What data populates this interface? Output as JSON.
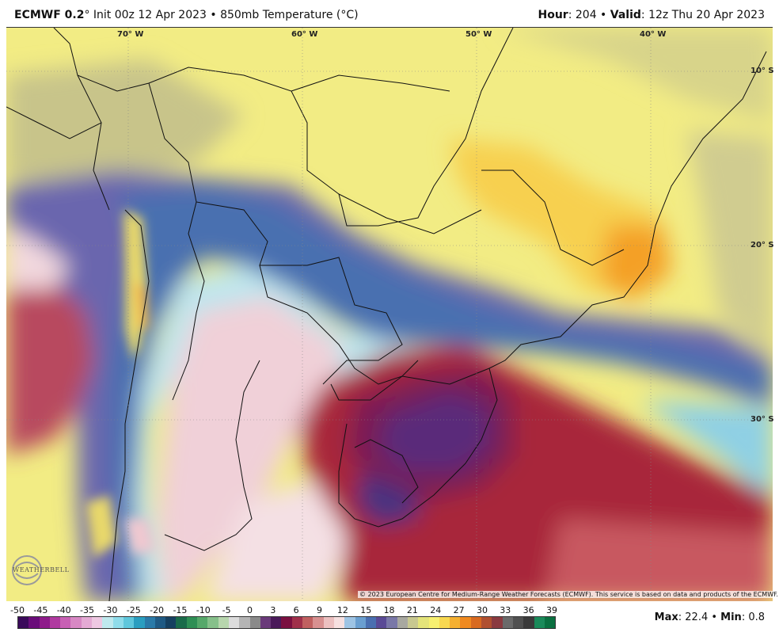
{
  "header": {
    "model": "ECMWF 0.2",
    "init_text": "° Init 00z 12 Apr 2023 • 850mb Temperature (°C)",
    "hour_label": "Hour",
    "hour_value": ": 204 • ",
    "valid_label": "Valid",
    "valid_value": ": 12z Thu 20 Apr 2023"
  },
  "map": {
    "longitudes": [
      "70° W",
      "60° W",
      "50° W",
      "40° W"
    ],
    "latitudes": [
      "10° S",
      "20° S",
      "30° S"
    ],
    "copyright": "© 2023 European Centre for Medium-Range Weather Forecasts (ECMWF). This service is based on data and products of the ECMWF.",
    "logo_text": "WEATHERBELL"
  },
  "legend": {
    "ticks": [
      "-50",
      "-45",
      "-40",
      "-35",
      "-30",
      "-25",
      "-20",
      "-15",
      "-10",
      "-5",
      "0",
      "3",
      "6",
      "9",
      "12",
      "15",
      "18",
      "21",
      "24",
      "27",
      "30",
      "33",
      "36",
      "39"
    ],
    "colors": [
      "#3a0a5a",
      "#6a0d7a",
      "#8e1a8a",
      "#b03aa0",
      "#c860b4",
      "#d888c4",
      "#e4aad4",
      "#eec8e2",
      "#bfe9ee",
      "#8fdcea",
      "#5fc7dc",
      "#2a9ec0",
      "#2a7aa8",
      "#1f5a84",
      "#164060",
      "#1a6b4a",
      "#2f8f55",
      "#56a86a",
      "#86c08a",
      "#b7d6ad",
      "#dcdcdc",
      "#b4b4b4",
      "#8a8a8a",
      "#6a3a7a",
      "#4a1a5a",
      "#7a1040",
      "#a0304a",
      "#c06060",
      "#d89090",
      "#ecc0c0",
      "#f6e0e0",
      "#9ec4e4",
      "#6a9fd0",
      "#4a6fb0",
      "#5a4a96",
      "#7a78a8",
      "#a8a8a0",
      "#c8c890",
      "#e4e47a",
      "#f7f070",
      "#f8d850",
      "#f5b030",
      "#f08a20",
      "#d86a20",
      "#b05030",
      "#8a3a40",
      "#6a6a6a",
      "#505050",
      "#3a3a3a",
      "#1a8a5a",
      "#0a7040"
    ],
    "max_label": "Max",
    "max_value": ": 22.4 • ",
    "min_label": "Min",
    "min_value": ": 0.8"
  }
}
